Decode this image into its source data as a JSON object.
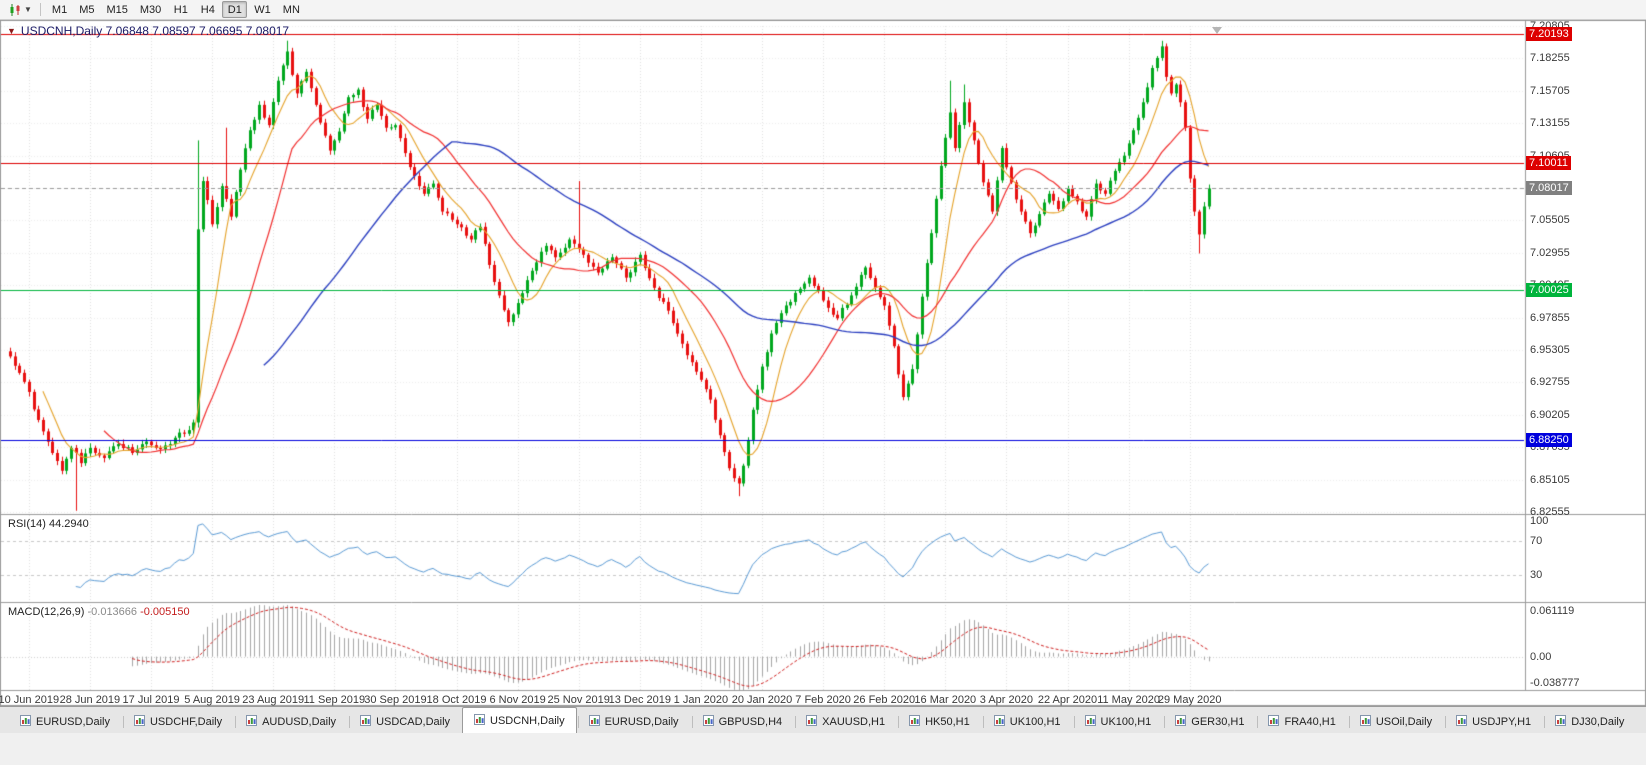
{
  "window": {
    "background": "#f0f0f0"
  },
  "toolbar": {
    "chart_icon": "candlestick-chart",
    "dropdown_icon": "chevron-down",
    "timeframes": [
      "M1",
      "M5",
      "M15",
      "M30",
      "H1",
      "H4",
      "D1",
      "W1",
      "MN"
    ],
    "active_timeframe": "D1"
  },
  "chart_header": {
    "symbol_readout": "USDCNH,Daily 7.06848 7.08597 7.06695 7.08017"
  },
  "chart_data": {
    "type": "candlestick",
    "symbol": "USDCNH",
    "timeframe": "Daily",
    "ohlc_readout": {
      "open": "7.06848",
      "high": "7.08597",
      "low": "7.06695",
      "close": "7.08017"
    },
    "ylim": [
      6.82555,
      7.20805
    ],
    "y_ticks": [
      "7.20805",
      "7.18255",
      "7.15705",
      "7.13155",
      "7.10605",
      "7.08055",
      "7.05505",
      "7.02955",
      "7.00405",
      "6.97855",
      "6.95305",
      "6.92755",
      "6.90205",
      "6.87655",
      "6.85105",
      "6.82555"
    ],
    "levels": [
      {
        "name": "resistance-upper",
        "price": 7.20193,
        "label": "7.20193",
        "color": "#dd0000"
      },
      {
        "name": "resistance-mid",
        "price": 7.10011,
        "label": "7.10011",
        "color": "#dd0000"
      },
      {
        "name": "psychological-7",
        "price": 7.00025,
        "label": "7.00025",
        "color": "#00b43c"
      },
      {
        "name": "support-lower",
        "price": 6.8825,
        "label": "6.88250",
        "color": "#0000dd"
      }
    ],
    "current_price": {
      "price": 7.08017,
      "label": "7.08017",
      "color": "#808080"
    },
    "candles": {
      "up_color": "#00a81e",
      "down_color": "#e81010"
    },
    "moving_averages": [
      {
        "name": "ma-fast",
        "period": 8,
        "color": "#e5a32a"
      },
      {
        "name": "ma-mid",
        "period": 21,
        "color": "#f23030"
      },
      {
        "name": "ma-slow",
        "period": 55,
        "color": "#2b3fc0"
      }
    ],
    "n_candles": 256,
    "close_anchors": [
      [
        0,
        6.948
      ],
      [
        3,
        6.928
      ],
      [
        6,
        6.898
      ],
      [
        9,
        6.872
      ],
      [
        11,
        6.858
      ],
      [
        13,
        6.876
      ],
      [
        15,
        6.864
      ],
      [
        17,
        6.876
      ],
      [
        20,
        6.868
      ],
      [
        23,
        6.879
      ],
      [
        26,
        6.872
      ],
      [
        29,
        6.881
      ],
      [
        32,
        6.875
      ],
      [
        35,
        6.884
      ],
      [
        38,
        6.89
      ],
      [
        39,
        6.896
      ],
      [
        40,
        7.048
      ],
      [
        41,
        7.086
      ],
      [
        43,
        7.052
      ],
      [
        45,
        7.082
      ],
      [
        47,
        7.058
      ],
      [
        49,
        7.095
      ],
      [
        51,
        7.126
      ],
      [
        53,
        7.146
      ],
      [
        55,
        7.13
      ],
      [
        57,
        7.165
      ],
      [
        59,
        7.188
      ],
      [
        61,
        7.155
      ],
      [
        63,
        7.172
      ],
      [
        66,
        7.132
      ],
      [
        68,
        7.11
      ],
      [
        70,
        7.125
      ],
      [
        72,
        7.152
      ],
      [
        74,
        7.158
      ],
      [
        76,
        7.135
      ],
      [
        78,
        7.146
      ],
      [
        80,
        7.128
      ],
      [
        82,
        7.13
      ],
      [
        84,
        7.108
      ],
      [
        86,
        7.09
      ],
      [
        88,
        7.076
      ],
      [
        90,
        7.084
      ],
      [
        92,
        7.062
      ],
      [
        95,
        7.052
      ],
      [
        98,
        7.04
      ],
      [
        100,
        7.05
      ],
      [
        102,
        7.02
      ],
      [
        104,
        6.996
      ],
      [
        106,
        6.975
      ],
      [
        108,
        6.99
      ],
      [
        110,
        7.008
      ],
      [
        112,
        7.022
      ],
      [
        114,
        7.035
      ],
      [
        116,
        7.026
      ],
      [
        119,
        7.04
      ],
      [
        122,
        7.028
      ],
      [
        125,
        7.014
      ],
      [
        128,
        7.026
      ],
      [
        131,
        7.01
      ],
      [
        134,
        7.028
      ],
      [
        137,
        7.002
      ],
      [
        140,
        6.984
      ],
      [
        143,
        6.958
      ],
      [
        146,
        6.936
      ],
      [
        149,
        6.914
      ],
      [
        151,
        6.886
      ],
      [
        153,
        6.86
      ],
      [
        155,
        6.848
      ],
      [
        156,
        6.862
      ],
      [
        158,
        6.906
      ],
      [
        160,
        6.94
      ],
      [
        162,
        6.966
      ],
      [
        164,
        6.982
      ],
      [
        167,
        6.998
      ],
      [
        170,
        7.01
      ],
      [
        173,
        6.992
      ],
      [
        176,
        6.978
      ],
      [
        179,
        6.996
      ],
      [
        182,
        7.018
      ],
      [
        184,
        7.002
      ],
      [
        186,
        6.988
      ],
      [
        188,
        6.956
      ],
      [
        190,
        6.916
      ],
      [
        192,
        6.938
      ],
      [
        194,
        6.995
      ],
      [
        196,
        7.045
      ],
      [
        198,
        7.098
      ],
      [
        200,
        7.14
      ],
      [
        201,
        7.112
      ],
      [
        203,
        7.148
      ],
      [
        205,
        7.118
      ],
      [
        207,
        7.085
      ],
      [
        209,
        7.062
      ],
      [
        211,
        7.112
      ],
      [
        213,
        7.085
      ],
      [
        215,
        7.062
      ],
      [
        217,
        7.045
      ],
      [
        219,
        7.06
      ],
      [
        221,
        7.076
      ],
      [
        223,
        7.064
      ],
      [
        225,
        7.08
      ],
      [
        227,
        7.07
      ],
      [
        229,
        7.058
      ],
      [
        231,
        7.084
      ],
      [
        233,
        7.076
      ],
      [
        235,
        7.094
      ],
      [
        237,
        7.106
      ],
      [
        239,
        7.126
      ],
      [
        241,
        7.148
      ],
      [
        243,
        7.175
      ],
      [
        245,
        7.192
      ],
      [
        246,
        7.168
      ],
      [
        247,
        7.155
      ],
      [
        248,
        7.162
      ],
      [
        249,
        7.148
      ],
      [
        250,
        7.128
      ],
      [
        251,
        7.088
      ],
      [
        252,
        7.062
      ],
      [
        253,
        7.044
      ],
      [
        254,
        7.066
      ],
      [
        255,
        7.08017
      ]
    ],
    "special_wicks": [
      {
        "i": 14,
        "low": 6.8265
      },
      {
        "i": 40,
        "high": 7.118,
        "low": 6.892
      },
      {
        "i": 46,
        "high": 7.128
      },
      {
        "i": 59,
        "high": 7.1965
      },
      {
        "i": 121,
        "high": 7.086
      },
      {
        "i": 155,
        "low": 6.838
      },
      {
        "i": 200,
        "high": 7.165
      },
      {
        "i": 203,
        "high": 7.162
      },
      {
        "i": 245,
        "high": 7.1964
      },
      {
        "i": 253,
        "low": 7.029
      }
    ],
    "x_labels": [
      "10 Jun 2019",
      "28 Jun 2019",
      "17 Jul 2019",
      "5 Aug 2019",
      "23 Aug 2019",
      "11 Sep 2019",
      "30 Sep 2019",
      "18 Oct 2019",
      "6 Nov 2019",
      "25 Nov 2019",
      "13 Dec 2019",
      "1 Jan 2020",
      "20 Jan 2020",
      "7 Feb 2020",
      "26 Feb 2020",
      "16 Mar 2020",
      "3 Apr 2020",
      "22 Apr 2020",
      "11 May 2020",
      "29 May 2020"
    ],
    "x_label_first_index": 4,
    "x_label_step": 13,
    "rsi_panel": {
      "label": "RSI(14)",
      "value": "44.2940",
      "period": 14,
      "line_color": "#5b9bd5",
      "levels": [
        70,
        30
      ],
      "axis_labels": [
        "100",
        "70",
        "30"
      ],
      "range": [
        0,
        100
      ]
    },
    "macd_panel": {
      "label": "MACD(12,26,9)",
      "value_main": "-0.013666",
      "value_signal": "-0.005150",
      "fast": 12,
      "slow": 26,
      "signal_period": 9,
      "histogram_color": "#a6a6a6",
      "signal_color": "#d02020",
      "axis_labels": [
        "0.061119",
        "0.00",
        "-0.038777"
      ],
      "range": [
        -0.038777,
        0.061119
      ]
    }
  },
  "tabs": {
    "items": [
      {
        "label": "EURUSD,Daily",
        "active": false
      },
      {
        "label": "USDCHF,Daily",
        "active": false
      },
      {
        "label": "AUDUSD,Daily",
        "active": false
      },
      {
        "label": "USDCAD,Daily",
        "active": false
      },
      {
        "label": "USDCNH,Daily",
        "active": true
      },
      {
        "label": "EURUSD,Daily",
        "active": false
      },
      {
        "label": "GBPUSD,H4",
        "active": false
      },
      {
        "label": "XAUUSD,H1",
        "active": false
      },
      {
        "label": "HK50,H1",
        "active": false
      },
      {
        "label": "UK100,H1",
        "active": false
      },
      {
        "label": "UK100,H1",
        "active": false
      },
      {
        "label": "GER30,H1",
        "active": false
      },
      {
        "label": "FRA40,H1",
        "active": false
      },
      {
        "label": "USOil,Daily",
        "active": false
      },
      {
        "label": "USDJPY,H1",
        "active": false
      },
      {
        "label": "DJ30,Daily",
        "active": false
      }
    ]
  }
}
